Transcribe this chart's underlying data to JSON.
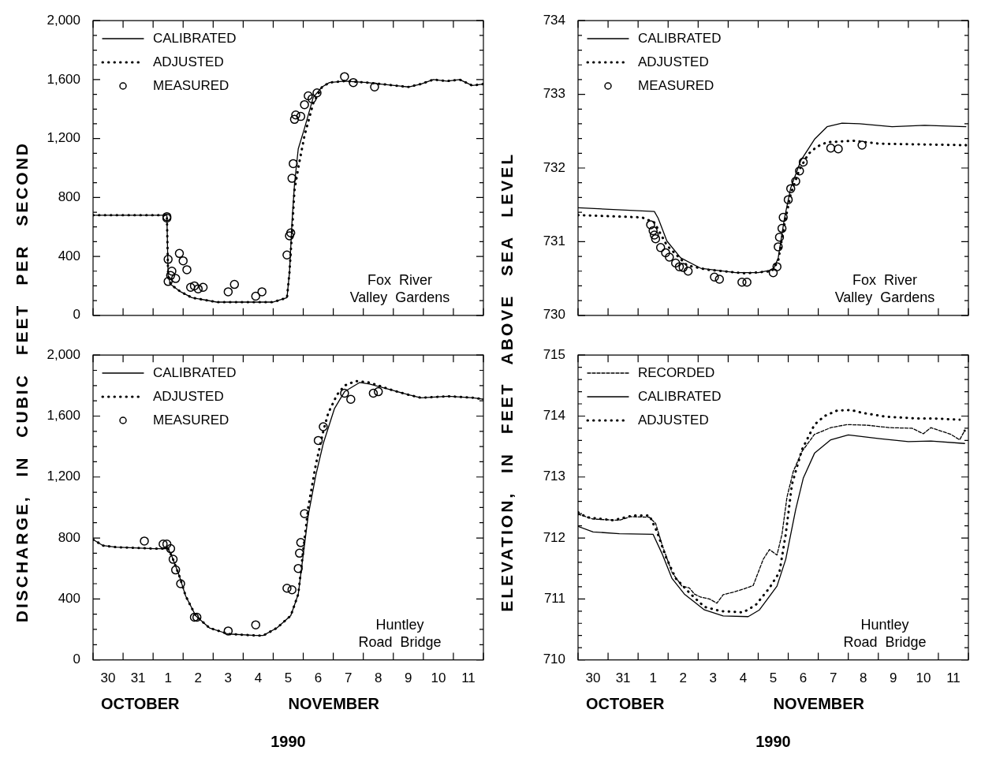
{
  "chart_data": [
    {
      "type": "line",
      "ylabel": "DISCHARGE, IN CUBIC FEET PER SECOND",
      "annotations": [
        "Fox River Valley Gardens"
      ],
      "legend": "top left",
      "tick_labels": "y",
      "xlim": [
        "1990-10-30T00:00",
        "1990-11-12T00:00"
      ],
      "xticks": [
        {
          "value": "1990-10-30T00:00",
          "label": null
        },
        {
          "value": "1990-10-31T00:00",
          "label": null
        },
        {
          "value": "1990-11-01T00:00",
          "label": null
        },
        {
          "value": "1990-11-02T00:00",
          "label": null
        },
        {
          "value": "1990-11-03T00:00",
          "label": null
        },
        {
          "value": "1990-11-04T00:00",
          "label": null
        },
        {
          "value": "1990-11-05T00:00",
          "label": null
        },
        {
          "value": "1990-11-06T00:00",
          "label": null
        },
        {
          "value": "1990-11-07T00:00",
          "label": null
        },
        {
          "value": "1990-11-08T00:00",
          "label": null
        },
        {
          "value": "1990-11-09T00:00",
          "label": null
        },
        {
          "value": "1990-11-10T00:00",
          "label": null
        },
        {
          "value": "1990-11-11T00:00",
          "label": null
        },
        {
          "value": "1990-11-12T00:00",
          "label": null
        }
      ],
      "ylim": [
        0,
        2000
      ],
      "yticks": [
        0,
        {
          "value": 100,
          "label": null
        },
        {
          "value": 200,
          "label": null
        },
        {
          "value": 300,
          "label": null
        },
        400,
        {
          "value": 500,
          "label": null
        },
        {
          "value": 600,
          "label": null
        },
        {
          "value": 700,
          "label": null
        },
        800,
        {
          "value": 900,
          "label": null
        },
        {
          "value": 1000,
          "label": null
        },
        {
          "value": 1100,
          "label": null
        },
        {
          "value": 1200,
          "label": "1,200"
        },
        {
          "value": 1300,
          "label": null
        },
        {
          "value": 1400,
          "label": null
        },
        {
          "value": 1500,
          "label": null
        },
        {
          "value": 1600,
          "label": "1,600"
        },
        {
          "value": 1700,
          "label": null
        },
        {
          "value": 1800,
          "label": null
        },
        {
          "value": 1900,
          "label": null
        },
        {
          "value": 2000,
          "label": "2,000"
        }
      ],
      "series": [
        {
          "name": "CALIBRATED",
          "type": "line",
          "line_style": "solid",
          "marker": "none",
          "color": "#000000",
          "x": [
            "1990-10-30T00:00",
            "1990-11-01T11:00",
            "1990-11-01T12:00",
            "1990-11-01T14:00",
            "1990-11-01T22:00",
            "1990-11-02T07:00",
            "1990-11-03T03:00",
            "1990-11-04T01:00",
            "1990-11-05T00:00",
            "1990-11-05T11:00",
            "1990-11-05T13:00",
            "1990-11-05T15:00",
            "1990-11-05T17:00",
            "1990-11-05T20:00",
            "1990-11-06T01:00",
            "1990-11-06T08:00",
            "1990-11-06T15:00",
            "1990-11-06T21:00",
            "1990-11-07T09:00",
            "1990-11-08T03:00",
            "1990-11-08T14:00",
            "1990-11-09T12:00",
            "1990-11-09T22:00",
            "1990-11-10T08:00",
            "1990-11-10T19:00",
            "1990-11-11T05:00",
            "1990-11-11T15:00",
            "1990-11-12T00:00"
          ],
          "values": [
            680,
            680,
            270,
            210,
            160,
            120,
            90,
            90,
            90,
            120,
            290,
            630,
            890,
            1130,
            1270,
            1480,
            1550,
            1580,
            1590,
            1580,
            1570,
            1550,
            1570,
            1600,
            1590,
            1600,
            1560,
            1570
          ]
        },
        {
          "name": "ADJUSTED",
          "type": "line",
          "line_style": "dotted",
          "marker": "none",
          "color": "#000000",
          "x": [
            "1990-10-30T00:00",
            "1990-11-01T11:00",
            "1990-11-01T12:00",
            "1990-11-01T14:00",
            "1990-11-01T22:00",
            "1990-11-02T07:00",
            "1990-11-03T03:00",
            "1990-11-04T01:00",
            "1990-11-05T00:00",
            "1990-11-05T11:00",
            "1990-11-05T13:00",
            "1990-11-05T15:00",
            "1990-11-05T17:00",
            "1990-11-05T20:00",
            "1990-11-06T01:00",
            "1990-11-06T08:00",
            "1990-11-06T15:00",
            "1990-11-06T21:00",
            "1990-11-07T09:00",
            "1990-11-08T03:00",
            "1990-11-08T14:00",
            "1990-11-09T12:00",
            "1990-11-09T22:00",
            "1990-11-10T08:00",
            "1990-11-10T19:00",
            "1990-11-11T05:00",
            "1990-11-11T15:00",
            "1990-11-12T00:00"
          ],
          "values": [
            680,
            680,
            270,
            210,
            160,
            120,
            90,
            90,
            90,
            120,
            290,
            560,
            850,
            1000,
            1220,
            1440,
            1550,
            1580,
            1590,
            1580,
            1570,
            1550,
            1570,
            1600,
            1590,
            1600,
            1560,
            1570
          ]
        },
        {
          "name": "MEASURED",
          "type": "scatter",
          "marker": "circle",
          "color": "#000000",
          "x": [
            "1990-11-01T11:00",
            "1990-11-01T11:00",
            "1990-11-01T12:00",
            "1990-11-01T12:00",
            "1990-11-01T14:00",
            "1990-11-01T15:00",
            "1990-11-01T18:00",
            "1990-11-01T21:00",
            "1990-11-02T00:00",
            "1990-11-02T03:00",
            "1990-11-02T06:00",
            "1990-11-02T09:00",
            "1990-11-02T12:00",
            "1990-11-02T16:00",
            "1990-11-03T12:00",
            "1990-11-03T17:00",
            "1990-11-04T10:00",
            "1990-11-04T15:00",
            "1990-11-05T11:00",
            "1990-11-05T13:00",
            "1990-11-05T14:00",
            "1990-11-05T15:00",
            "1990-11-05T16:00",
            "1990-11-05T17:00",
            "1990-11-05T18:00",
            "1990-11-05T22:00",
            "1990-11-06T01:00",
            "1990-11-06T04:00",
            "1990-11-06T07:00",
            "1990-11-06T11:00",
            "1990-11-07T09:00",
            "1990-11-07T16:00",
            "1990-11-08T09:00"
          ],
          "values": [
            670,
            660,
            380,
            230,
            270,
            300,
            250,
            420,
            370,
            310,
            190,
            200,
            180,
            190,
            160,
            210,
            130,
            160,
            410,
            540,
            560,
            930,
            1030,
            1330,
            1360,
            1350,
            1430,
            1490,
            1470,
            1510,
            1620,
            1580,
            1550
          ]
        }
      ]
    },
    {
      "type": "line",
      "ylabel": "ELEVATION, IN FEET ABOVE SEA LEVEL",
      "annotations": [
        "Fox River Valley Gardens"
      ],
      "legend": "top left",
      "tick_labels": "y",
      "xlim": [
        "1990-10-30T00:00",
        "1990-11-12T00:00"
      ],
      "xticks": [
        {
          "value": "1990-10-30T00:00",
          "label": null
        },
        {
          "value": "1990-10-31T00:00",
          "label": null
        },
        {
          "value": "1990-11-01T00:00",
          "label": null
        },
        {
          "value": "1990-11-02T00:00",
          "label": null
        },
        {
          "value": "1990-11-03T00:00",
          "label": null
        },
        {
          "value": "1990-11-04T00:00",
          "label": null
        },
        {
          "value": "1990-11-05T00:00",
          "label": null
        },
        {
          "value": "1990-11-06T00:00",
          "label": null
        },
        {
          "value": "1990-11-07T00:00",
          "label": null
        },
        {
          "value": "1990-11-08T00:00",
          "label": null
        },
        {
          "value": "1990-11-09T00:00",
          "label": null
        },
        {
          "value": "1990-11-10T00:00",
          "label": null
        },
        {
          "value": "1990-11-11T00:00",
          "label": null
        },
        {
          "value": "1990-11-12T00:00",
          "label": null
        }
      ],
      "ylim": [
        730,
        734
      ],
      "yticks": [
        730,
        {
          "value": 730.2,
          "label": null
        },
        {
          "value": 730.4,
          "label": null
        },
        {
          "value": 730.6,
          "label": null
        },
        {
          "value": 730.8,
          "label": null
        },
        731,
        {
          "value": 731.2,
          "label": null
        },
        {
          "value": 731.4,
          "label": null
        },
        {
          "value": 731.6,
          "label": null
        },
        {
          "value": 731.8,
          "label": null
        },
        732,
        {
          "value": 732.2,
          "label": null
        },
        {
          "value": 732.4,
          "label": null
        },
        {
          "value": 732.6,
          "label": null
        },
        {
          "value": 732.8,
          "label": null
        },
        733,
        {
          "value": 733.2,
          "label": null
        },
        {
          "value": 733.4,
          "label": null
        },
        {
          "value": 733.6,
          "label": null
        },
        {
          "value": 733.8,
          "label": null
        },
        734
      ],
      "series": [
        {
          "name": "CALIBRATED",
          "type": "line",
          "line_style": "solid",
          "marker": "none",
          "color": "#000000",
          "x": [
            "1990-10-30T00:00",
            "1990-11-01T13:00",
            "1990-11-01T16:00",
            "1990-11-01T23:00",
            "1990-11-02T10:00",
            "1990-11-03T02:00",
            "1990-11-04T06:00",
            "1990-11-05T00:00",
            "1990-11-05T12:00",
            "1990-11-05T16:00",
            "1990-11-05T21:00",
            "1990-11-06T02:00",
            "1990-11-06T10:00",
            "1990-11-06T21:00",
            "1990-11-07T07:00",
            "1990-11-07T19:00",
            "1990-11-08T09:00",
            "1990-11-09T11:00",
            "1990-11-10T13:00",
            "1990-11-11T22:00"
          ],
          "values": [
            731.46,
            731.41,
            731.32,
            731.01,
            730.78,
            730.64,
            730.58,
            730.58,
            730.62,
            730.78,
            731.32,
            731.73,
            732.1,
            732.39,
            732.56,
            732.61,
            732.6,
            732.56,
            732.58,
            732.56
          ]
        },
        {
          "name": "ADJUSTED",
          "type": "line",
          "line_style": "dotted",
          "marker": "none",
          "color": "#000000",
          "x": [
            "1990-10-30T00:00",
            "1990-11-01T03:00",
            "1990-11-01T13:00",
            "1990-11-01T23:00",
            "1990-11-02T15:00",
            "1990-11-03T07:00",
            "1990-11-04T14:00",
            "1990-11-05T11:00",
            "1990-11-05T16:00",
            "1990-11-05T21:00",
            "1990-11-06T02:00",
            "1990-11-06T09:00",
            "1990-11-06T16:00",
            "1990-11-06T23:00",
            "1990-11-07T07:00",
            "1990-11-08T04:00",
            "1990-11-09T01:00",
            "1990-11-11T22:00"
          ],
          "values": [
            731.36,
            731.33,
            731.26,
            730.95,
            730.68,
            730.62,
            730.57,
            730.6,
            730.74,
            731.24,
            731.65,
            731.98,
            732.19,
            732.29,
            732.35,
            732.37,
            732.33,
            732.31
          ]
        },
        {
          "name": "MEASURED",
          "type": "scatter",
          "marker": "circle",
          "color": "#000000",
          "x": [
            "1990-11-01T10:00",
            "1990-11-01T12:00",
            "1990-11-01T13:00",
            "1990-11-01T14:00",
            "1990-11-01T18:00",
            "1990-11-01T22:00",
            "1990-11-02T01:00",
            "1990-11-02T06:00",
            "1990-11-02T09:00",
            "1990-11-02T12:00",
            "1990-11-02T16:00",
            "1990-11-03T13:00",
            "1990-11-03T17:00",
            "1990-11-04T11:00",
            "1990-11-04T15:00",
            "1990-11-05T12:00",
            "1990-11-05T15:00",
            "1990-11-05T16:00",
            "1990-11-05T17:00",
            "1990-11-05T19:00",
            "1990-11-05T20:00",
            "1990-11-06T00:00",
            "1990-11-06T02:00",
            "1990-11-06T06:00",
            "1990-11-06T09:00",
            "1990-11-06T12:00",
            "1990-11-07T10:00",
            "1990-11-07T16:00",
            "1990-11-08T11:00"
          ],
          "values": [
            731.23,
            731.15,
            731.09,
            731.04,
            730.92,
            730.85,
            730.79,
            730.71,
            730.66,
            730.65,
            730.6,
            730.52,
            730.49,
            730.45,
            730.45,
            730.58,
            730.66,
            730.93,
            731.06,
            731.18,
            731.33,
            731.57,
            731.72,
            731.82,
            731.96,
            732.08,
            732.27,
            732.26,
            732.31
          ]
        }
      ]
    },
    {
      "type": "line",
      "xlabel": "1990",
      "annotations": [
        "Huntley Road Bridge",
        "OCTOBER",
        "NOVEMBER"
      ],
      "legend": "top left",
      "xlim": [
        "1990-10-30T00:00",
        "1990-11-12T00:00"
      ],
      "xticks": [
        {
          "value": "1990-10-30T00:00",
          "label": null
        },
        {
          "value": "1990-10-30T12:00",
          "label": "30"
        },
        {
          "value": "1990-10-31T00:00",
          "label": null
        },
        {
          "value": "1990-10-31T12:00",
          "label": "31"
        },
        {
          "value": "1990-11-01T00:00",
          "label": null
        },
        {
          "value": "1990-11-01T12:00",
          "label": "1"
        },
        {
          "value": "1990-11-02T00:00",
          "label": null
        },
        {
          "value": "1990-11-02T12:00",
          "label": "2"
        },
        {
          "value": "1990-11-03T00:00",
          "label": null
        },
        {
          "value": "1990-11-03T12:00",
          "label": "3"
        },
        {
          "value": "1990-11-04T00:00",
          "label": null
        },
        {
          "value": "1990-11-04T12:00",
          "label": "4"
        },
        {
          "value": "1990-11-05T00:00",
          "label": null
        },
        {
          "value": "1990-11-05T12:00",
          "label": "5"
        },
        {
          "value": "1990-11-06T00:00",
          "label": null
        },
        {
          "value": "1990-11-06T12:00",
          "label": "6"
        },
        {
          "value": "1990-11-07T00:00",
          "label": null
        },
        {
          "value": "1990-11-07T12:00",
          "label": "7"
        },
        {
          "value": "1990-11-08T00:00",
          "label": null
        },
        {
          "value": "1990-11-08T12:00",
          "label": "8"
        },
        {
          "value": "1990-11-09T00:00",
          "label": null
        },
        {
          "value": "1990-11-09T12:00",
          "label": "9"
        },
        {
          "value": "1990-11-10T00:00",
          "label": null
        },
        {
          "value": "1990-11-10T12:00",
          "label": "10"
        },
        {
          "value": "1990-11-11T00:00",
          "label": null
        },
        {
          "value": "1990-11-11T12:00",
          "label": "11"
        },
        {
          "value": "1990-11-12T00:00",
          "label": null
        }
      ],
      "ylim": [
        0,
        2000
      ],
      "yticks": [
        0,
        {
          "value": 100,
          "label": null
        },
        {
          "value": 200,
          "label": null
        },
        {
          "value": 300,
          "label": null
        },
        400,
        {
          "value": 500,
          "label": null
        },
        {
          "value": 600,
          "label": null
        },
        {
          "value": 700,
          "label": null
        },
        800,
        {
          "value": 900,
          "label": null
        },
        {
          "value": 1000,
          "label": null
        },
        {
          "value": 1100,
          "label": null
        },
        {
          "value": 1200,
          "label": "1,200"
        },
        {
          "value": 1300,
          "label": null
        },
        {
          "value": 1400,
          "label": null
        },
        {
          "value": 1500,
          "label": null
        },
        {
          "value": 1600,
          "label": "1,600"
        },
        {
          "value": 1700,
          "label": null
        },
        {
          "value": 1800,
          "label": null
        },
        {
          "value": 1900,
          "label": null
        },
        {
          "value": 2000,
          "label": "2,000"
        }
      ],
      "series": [
        {
          "name": "CALIBRATED",
          "type": "line",
          "line_style": "solid",
          "marker": "none",
          "color": "#000000",
          "x": [
            "1990-10-30T00:00",
            "1990-10-30T08:00",
            "1990-10-30T18:00",
            "1990-11-01T01:00",
            "1990-11-01T12:00",
            "1990-11-01T15:00",
            "1990-11-01T21:00",
            "1990-11-02T02:00",
            "1990-11-02T10:00",
            "1990-11-02T21:00",
            "1990-11-03T12:00",
            "1990-11-04T10:00",
            "1990-11-04T16:00",
            "1990-11-05T03:00",
            "1990-11-05T14:00",
            "1990-11-05T20:00",
            "1990-11-06T00:00",
            "1990-11-06T04:00",
            "1990-11-06T10:00",
            "1990-11-06T16:00",
            "1990-11-07T01:00",
            "1990-11-07T09:00",
            "1990-11-07T21:00",
            "1990-11-08T05:00",
            "1990-11-08T23:00",
            "1990-11-09T12:00",
            "1990-11-09T22:00",
            "1990-11-10T20:00",
            "1990-11-11T16:00",
            "1990-11-12T00:00"
          ],
          "values": [
            790,
            750,
            740,
            730,
            730,
            680,
            550,
            420,
            290,
            210,
            170,
            160,
            160,
            210,
            290,
            430,
            690,
            950,
            1210,
            1420,
            1650,
            1760,
            1820,
            1810,
            1770,
            1740,
            1720,
            1730,
            1720,
            1710
          ]
        },
        {
          "name": "ADJUSTED",
          "type": "line",
          "line_style": "dotted",
          "marker": "none",
          "color": "#000000",
          "x": [
            "1990-10-30T00:00",
            "1990-10-30T08:00",
            "1990-10-30T18:00",
            "1990-11-01T01:00",
            "1990-11-01T12:00",
            "1990-11-01T15:00",
            "1990-11-01T21:00",
            "1990-11-02T02:00",
            "1990-11-02T10:00",
            "1990-11-02T21:00",
            "1990-11-03T12:00",
            "1990-11-04T10:00",
            "1990-11-04T16:00",
            "1990-11-05T03:00",
            "1990-11-05T14:00",
            "1990-11-05T20:00",
            "1990-11-06T00:00",
            "1990-11-06T04:00",
            "1990-11-06T10:00",
            "1990-11-06T16:00",
            "1990-11-06T20:00",
            "1990-11-07T03:00",
            "1990-11-07T09:00",
            "1990-11-07T18:00",
            "1990-11-08T05:00",
            "1990-11-08T23:00",
            "1990-11-09T12:00",
            "1990-11-09T22:00",
            "1990-11-10T20:00",
            "1990-11-11T16:00",
            "1990-11-12T00:00"
          ],
          "values": [
            790,
            750,
            740,
            730,
            730,
            680,
            550,
            420,
            290,
            210,
            170,
            160,
            160,
            210,
            290,
            430,
            720,
            1000,
            1280,
            1500,
            1620,
            1740,
            1800,
            1830,
            1820,
            1770,
            1740,
            1720,
            1730,
            1720,
            1710
          ]
        },
        {
          "name": "MEASURED",
          "type": "scatter",
          "marker": "circle",
          "color": "#000000",
          "x": [
            "1990-10-31T17:00",
            "1990-11-01T08:00",
            "1990-11-01T11:00",
            "1990-11-01T14:00",
            "1990-11-01T16:00",
            "1990-11-01T18:00",
            "1990-11-01T22:00",
            "1990-11-02T09:00",
            "1990-11-02T11:00",
            "1990-11-03T12:00",
            "1990-11-04T10:00",
            "1990-11-05T11:00",
            "1990-11-05T15:00",
            "1990-11-05T20:00",
            "1990-11-05T21:00",
            "1990-11-05T22:00",
            "1990-11-06T01:00",
            "1990-11-06T12:00",
            "1990-11-06T16:00",
            "1990-11-07T09:00",
            "1990-11-07T14:00",
            "1990-11-08T08:00",
            "1990-11-08T12:00"
          ],
          "values": [
            780,
            760,
            760,
            730,
            660,
            590,
            500,
            280,
            280,
            190,
            230,
            470,
            460,
            600,
            700,
            770,
            960,
            1440,
            1530,
            1750,
            1710,
            1750,
            1760
          ]
        }
      ]
    },
    {
      "type": "line",
      "xlabel": "1990",
      "annotations": [
        "Huntley Road Bridge",
        "OCTOBER",
        "NOVEMBER"
      ],
      "legend": "top left",
      "xlim": [
        "1990-10-30T00:00",
        "1990-11-12T00:00"
      ],
      "xticks": [
        {
          "value": "1990-10-30T00:00",
          "label": null
        },
        {
          "value": "1990-10-30T12:00",
          "label": "30"
        },
        {
          "value": "1990-10-31T00:00",
          "label": null
        },
        {
          "value": "1990-10-31T12:00",
          "label": "31"
        },
        {
          "value": "1990-11-01T00:00",
          "label": null
        },
        {
          "value": "1990-11-01T12:00",
          "label": "1"
        },
        {
          "value": "1990-11-02T00:00",
          "label": null
        },
        {
          "value": "1990-11-02T12:00",
          "label": "2"
        },
        {
          "value": "1990-11-03T00:00",
          "label": null
        },
        {
          "value": "1990-11-03T12:00",
          "label": "3"
        },
        {
          "value": "1990-11-04T00:00",
          "label": null
        },
        {
          "value": "1990-11-04T12:00",
          "label": "4"
        },
        {
          "value": "1990-11-05T00:00",
          "label": null
        },
        {
          "value": "1990-11-05T12:00",
          "label": "5"
        },
        {
          "value": "1990-11-06T00:00",
          "label": null
        },
        {
          "value": "1990-11-06T12:00",
          "label": "6"
        },
        {
          "value": "1990-11-07T00:00",
          "label": null
        },
        {
          "value": "1990-11-07T12:00",
          "label": "7"
        },
        {
          "value": "1990-11-08T00:00",
          "label": null
        },
        {
          "value": "1990-11-08T12:00",
          "label": "8"
        },
        {
          "value": "1990-11-09T00:00",
          "label": null
        },
        {
          "value": "1990-11-09T12:00",
          "label": "9"
        },
        {
          "value": "1990-11-10T00:00",
          "label": null
        },
        {
          "value": "1990-11-10T12:00",
          "label": "10"
        },
        {
          "value": "1990-11-11T00:00",
          "label": null
        },
        {
          "value": "1990-11-11T12:00",
          "label": "11"
        },
        {
          "value": "1990-11-12T00:00",
          "label": null
        }
      ],
      "ylim": [
        710,
        715
      ],
      "yticks": [
        710,
        {
          "value": 710.2,
          "label": null
        },
        {
          "value": 710.4,
          "label": null
        },
        {
          "value": 710.6,
          "label": null
        },
        {
          "value": 710.8,
          "label": null
        },
        711,
        {
          "value": 711.2,
          "label": null
        },
        {
          "value": 711.4,
          "label": null
        },
        {
          "value": 711.6,
          "label": null
        },
        {
          "value": 711.8,
          "label": null
        },
        712,
        {
          "value": 712.2,
          "label": null
        },
        {
          "value": 712.4,
          "label": null
        },
        {
          "value": 712.6,
          "label": null
        },
        {
          "value": 712.8,
          "label": null
        },
        713,
        {
          "value": 713.2,
          "label": null
        },
        {
          "value": 713.4,
          "label": null
        },
        {
          "value": 713.6,
          "label": null
        },
        {
          "value": 713.8,
          "label": null
        },
        714,
        {
          "value": 714.2,
          "label": null
        },
        {
          "value": 714.4,
          "label": null
        },
        {
          "value": 714.6,
          "label": null
        },
        {
          "value": 714.8,
          "label": null
        },
        715
      ],
      "series": [
        {
          "name": "RECORDED",
          "type": "line",
          "line_style": "dashed",
          "marker": "none",
          "color": "#000000",
          "x": [
            "1990-10-30T00:00",
            "1990-10-30T12:00",
            "1990-10-31T09:00",
            "1990-10-31T18:00",
            "1990-11-01T09:00",
            "1990-11-01T14:00",
            "1990-11-01T19:00",
            "1990-11-02T03:00",
            "1990-11-02T11:00",
            "1990-11-02T17:00",
            "1990-11-02T21:00",
            "1990-11-03T02:00",
            "1990-11-03T09:00",
            "1990-11-03T15:00",
            "1990-11-03T20:00",
            "1990-11-04T04:00",
            "1990-11-04T12:00",
            "1990-11-04T20:00",
            "1990-11-05T04:00",
            "1990-11-05T09:00",
            "1990-11-05T15:00",
            "1990-11-05T19:00",
            "1990-11-05T23:00",
            "1990-11-06T04:00",
            "1990-11-06T11:00",
            "1990-11-06T21:00",
            "1990-11-07T10:00",
            "1990-11-07T23:00",
            "1990-11-08T15:00",
            "1990-11-09T09:00",
            "1990-11-10T03:00",
            "1990-11-10T12:00",
            "1990-11-10T18:00",
            "1990-11-11T10:00",
            "1990-11-11T17:00",
            "1990-11-11T21:00"
          ],
          "values": [
            712.39,
            712.31,
            712.29,
            712.35,
            712.34,
            712.24,
            711.9,
            711.44,
            711.21,
            711.18,
            711.08,
            711.03,
            711.0,
            710.93,
            711.07,
            711.11,
            711.16,
            711.22,
            711.65,
            711.81,
            711.72,
            712.06,
            712.67,
            713.09,
            713.42,
            713.7,
            713.81,
            713.86,
            713.85,
            713.81,
            713.8,
            713.71,
            713.81,
            713.7,
            713.61,
            713.76
          ]
        },
        {
          "name": "CALIBRATED",
          "type": "line",
          "line_style": "solid",
          "marker": "none",
          "color": "#000000",
          "x": [
            "1990-10-30T00:00",
            "1990-10-30T12:00",
            "1990-10-31T09:00",
            "1990-11-01T12:00",
            "1990-11-01T19:00",
            "1990-11-02T03:00",
            "1990-11-02T13:00",
            "1990-11-03T05:00",
            "1990-11-03T20:00",
            "1990-11-04T16:00",
            "1990-11-05T01:00",
            "1990-11-05T15:00",
            "1990-11-05T22:00",
            "1990-11-06T06:00",
            "1990-11-06T12:00",
            "1990-11-06T21:00",
            "1990-11-07T10:00",
            "1990-11-08T00:00",
            "1990-11-09T01:00",
            "1990-11-10T00:00",
            "1990-11-10T18:00",
            "1990-11-11T21:00"
          ],
          "values": [
            712.19,
            712.1,
            712.07,
            712.06,
            711.75,
            711.34,
            711.08,
            710.82,
            710.72,
            710.71,
            710.82,
            711.21,
            711.65,
            712.47,
            712.98,
            713.39,
            713.61,
            713.69,
            713.63,
            713.58,
            713.59,
            713.55
          ]
        },
        {
          "name": "ADJUSTED",
          "type": "line",
          "line_style": "dotted",
          "marker": "none",
          "color": "#000000",
          "x": [
            "1990-10-30T00:00",
            "1990-10-30T07:00",
            "1990-10-31T04:00",
            "1990-10-31T20:00",
            "1990-11-01T09:00",
            "1990-11-01T15:00",
            "1990-11-01T22:00",
            "1990-11-02T06:00",
            "1990-11-02T18:00",
            "1990-11-03T05:00",
            "1990-11-03T18:00",
            "1990-11-04T12:00",
            "1990-11-04T22:00",
            "1990-11-05T09:00",
            "1990-11-05T17:00",
            "1990-11-05T22:00",
            "1990-11-06T03:00",
            "1990-11-06T11:00",
            "1990-11-06T21:00",
            "1990-11-07T05:00",
            "1990-11-07T15:00",
            "1990-11-08T02:00",
            "1990-11-08T12:00",
            "1990-11-09T06:00",
            "1990-11-10T08:00",
            "1990-11-10T21:00",
            "1990-11-11T17:00"
          ],
          "values": [
            712.42,
            712.34,
            712.29,
            712.37,
            712.37,
            712.11,
            711.7,
            711.34,
            711.08,
            710.87,
            710.8,
            710.78,
            710.9,
            711.18,
            711.44,
            712.06,
            712.88,
            713.45,
            713.86,
            714.0,
            714.09,
            714.1,
            714.05,
            713.99,
            713.96,
            713.96,
            713.94
          ]
        }
      ]
    }
  ]
}
